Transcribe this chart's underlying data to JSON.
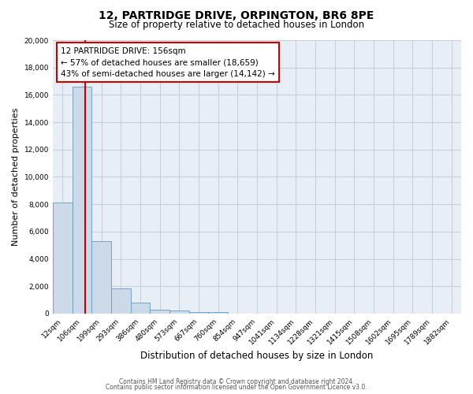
{
  "title": "12, PARTRIDGE DRIVE, ORPINGTON, BR6 8PE",
  "subtitle": "Size of property relative to detached houses in London",
  "xlabel": "Distribution of detached houses by size in London",
  "ylabel": "Number of detached properties",
  "bar_labels": [
    "12sqm",
    "106sqm",
    "199sqm",
    "293sqm",
    "386sqm",
    "480sqm",
    "573sqm",
    "667sqm",
    "760sqm",
    "854sqm",
    "947sqm",
    "1041sqm",
    "1134sqm",
    "1228sqm",
    "1321sqm",
    "1415sqm",
    "1508sqm",
    "1602sqm",
    "1695sqm",
    "1789sqm",
    "1882sqm"
  ],
  "bar_values": [
    8150,
    16600,
    5300,
    1850,
    800,
    300,
    200,
    130,
    110,
    0,
    0,
    0,
    0,
    0,
    0,
    0,
    0,
    0,
    0,
    0,
    0
  ],
  "bar_color": "#ccd9e8",
  "bar_edge_color": "#6699bb",
  "property_line_label": "12 PARTRIDGE DRIVE: 156sqm",
  "annotation_line1": "← 57% of detached houses are smaller (18,659)",
  "annotation_line2": "43% of semi-detached houses are larger (14,142) →",
  "annotation_box_color": "#ffffff",
  "annotation_box_edge": "#cc0000",
  "vline_color": "#cc0000",
  "vline_x": 1.15,
  "ylim": [
    0,
    20000
  ],
  "yticks": [
    0,
    2000,
    4000,
    6000,
    8000,
    10000,
    12000,
    14000,
    16000,
    18000,
    20000
  ],
  "background_color": "#e8eef5",
  "grid_color": "#c8d0dc",
  "footer1": "Contains HM Land Registry data © Crown copyright and database right 2024.",
  "footer2": "Contains public sector information licensed under the Open Government Licence v3.0."
}
